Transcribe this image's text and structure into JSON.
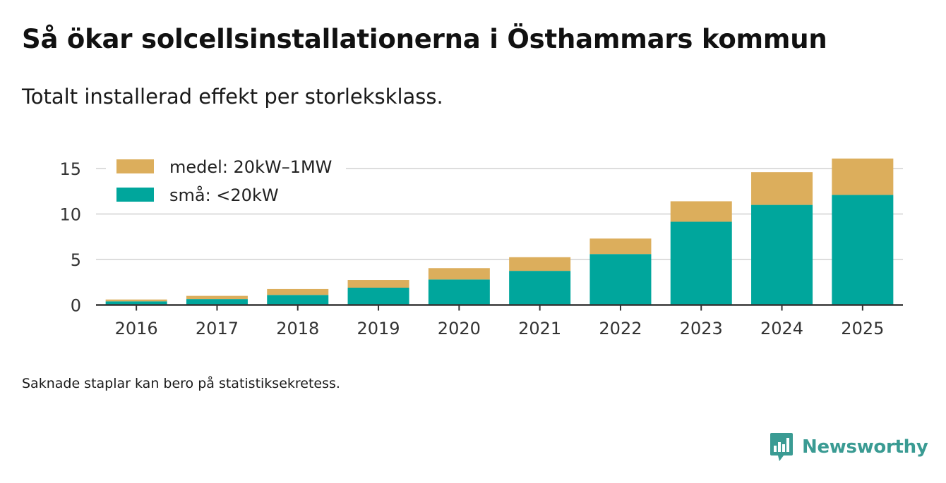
{
  "title": "Så ökar solcellsinstallationerna i Östhammars kommun",
  "subtitle": "Totalt installerad effekt per storleksklass.",
  "footnote": "Saknade staplar kan bero på statistiksekretess.",
  "brand": {
    "name": "Newsworthy",
    "logo_icon": "bar-chart-speech-bubble-icon",
    "color": "#3a9b93"
  },
  "chart_data": {
    "type": "bar",
    "stacked": true,
    "categories": [
      "2016",
      "2017",
      "2018",
      "2019",
      "2020",
      "2021",
      "2022",
      "2023",
      "2024",
      "2025"
    ],
    "series": [
      {
        "name": "små: <20kW",
        "color": "#00a69c",
        "values": [
          0.4,
          0.65,
          1.1,
          1.9,
          2.8,
          3.75,
          5.6,
          9.15,
          11.0,
          12.1
        ]
      },
      {
        "name": "medel: 20kW–1MW",
        "color": "#dcae5c",
        "values": [
          0.2,
          0.35,
          0.65,
          0.85,
          1.25,
          1.5,
          1.7,
          2.25,
          3.6,
          4.0
        ]
      }
    ],
    "legend_order": [
      1,
      0
    ],
    "y_ticks": [
      0,
      5,
      10,
      15
    ],
    "ylim": [
      0,
      16.5
    ],
    "xlabel": "",
    "ylabel": "",
    "grid": true,
    "legend_position": "top-left"
  }
}
